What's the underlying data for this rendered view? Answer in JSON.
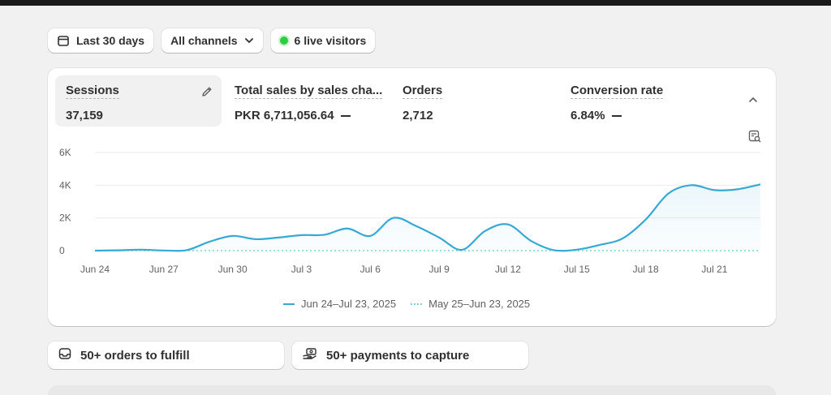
{
  "filters": {
    "date_range": "Last 30 days",
    "channels": "All channels",
    "live_visitors": "6 live visitors"
  },
  "metrics": [
    {
      "label": "Sessions",
      "value": "37,159",
      "active": true
    },
    {
      "label": "Total sales by sales cha...",
      "value": "PKR 6,711,056.64"
    },
    {
      "label": "Orders",
      "value": "2,712"
    },
    {
      "label": "Conversion rate",
      "value": "6.84%"
    }
  ],
  "chart_data": {
    "type": "line",
    "y_ticks": [
      "6K",
      "4K",
      "2K",
      "0"
    ],
    "ylim": [
      0,
      6000
    ],
    "x_tick_labels": [
      "Jun 24",
      "Jun 27",
      "Jun 30",
      "Jul 3",
      "Jul 6",
      "Jul 9",
      "Jul 12",
      "Jul 15",
      "Jul 18",
      "Jul 21"
    ],
    "x_tick_index": [
      0,
      3,
      6,
      9,
      12,
      15,
      18,
      21,
      24,
      27
    ],
    "grid": true,
    "legend_position": "bottom",
    "series": [
      {
        "name": "Jun 24–Jul 23, 2025",
        "style": "solid",
        "color": "#36a9d4",
        "values": [
          0,
          20,
          60,
          10,
          30,
          550,
          900,
          700,
          800,
          950,
          970,
          1350,
          900,
          2000,
          1500,
          800,
          50,
          1200,
          1600,
          600,
          30,
          60,
          350,
          750,
          1900,
          3500,
          4000,
          3700,
          3750,
          4050
        ]
      },
      {
        "name": "May 25–Jun 23, 2025",
        "style": "dotted",
        "color": "#7ed3d1",
        "values": [
          0,
          0,
          0,
          0,
          0,
          0,
          0,
          0,
          0,
          0,
          0,
          0,
          0,
          0,
          0,
          0,
          0,
          0,
          0,
          0,
          0,
          0,
          0,
          0,
          0,
          0,
          0,
          0,
          0,
          0
        ]
      }
    ]
  },
  "tasks": {
    "orders": "50+ orders to fulfill",
    "payments": "50+ payments to capture"
  }
}
